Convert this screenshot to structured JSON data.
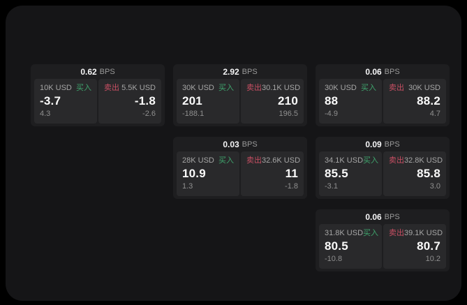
{
  "labels": {
    "bps_unit": "BPS",
    "buy": "买入",
    "sell": "卖出"
  },
  "colors": {
    "buy": "#3fa46d",
    "sell": "#c84f63",
    "value_text": "#fafafa",
    "muted_text": "#8f8f8f",
    "card_bg": "#1e1e20",
    "panel_bg": "#29292b",
    "window_bg": "#151517"
  },
  "cards": [
    {
      "row": 1,
      "col": 1,
      "bps": "0.62",
      "buy": {
        "amount": "10K USD",
        "value": "-3.7",
        "sub": "4.3"
      },
      "sell": {
        "amount": "5.5K USD",
        "value": "-1.8",
        "sub": "-2.6"
      }
    },
    {
      "row": 1,
      "col": 2,
      "bps": "2.92",
      "buy": {
        "amount": "30K USD",
        "value": "201",
        "sub": "-188.1"
      },
      "sell": {
        "amount": "30.1K USD",
        "value": "210",
        "sub": "196.5"
      }
    },
    {
      "row": 1,
      "col": 3,
      "bps": "0.06",
      "buy": {
        "amount": "30K USD",
        "value": "88",
        "sub": "-4.9"
      },
      "sell": {
        "amount": "30K USD",
        "value": "88.2",
        "sub": "4.7"
      }
    },
    {
      "row": 2,
      "col": 2,
      "bps": "0.03",
      "buy": {
        "amount": "28K USD",
        "value": "10.9",
        "sub": "1.3"
      },
      "sell": {
        "amount": "32.6K USD",
        "value": "11",
        "sub": "-1.8"
      }
    },
    {
      "row": 2,
      "col": 3,
      "bps": "0.09",
      "buy": {
        "amount": "34.1K USD",
        "value": "85.5",
        "sub": "-3.1"
      },
      "sell": {
        "amount": "32.8K USD",
        "value": "85.8",
        "sub": "3.0"
      }
    },
    {
      "row": 3,
      "col": 3,
      "bps": "0.06",
      "buy": {
        "amount": "31.8K USD",
        "value": "80.5",
        "sub": "-10.8"
      },
      "sell": {
        "amount": "39.1K USD",
        "value": "80.7",
        "sub": "10.2"
      }
    }
  ]
}
